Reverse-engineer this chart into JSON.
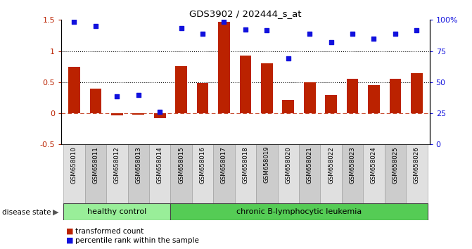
{
  "title": "GDS3902 / 202444_s_at",
  "categories": [
    "GSM658010",
    "GSM658011",
    "GSM658012",
    "GSM658013",
    "GSM658014",
    "GSM658015",
    "GSM658016",
    "GSM658017",
    "GSM658018",
    "GSM658019",
    "GSM658020",
    "GSM658021",
    "GSM658022",
    "GSM658023",
    "GSM658024",
    "GSM658025",
    "GSM658026"
  ],
  "bar_values": [
    0.75,
    0.4,
    -0.03,
    -0.02,
    -0.08,
    0.76,
    0.49,
    1.47,
    0.93,
    0.8,
    0.21,
    0.5,
    0.3,
    0.55,
    0.45,
    0.56,
    0.65
  ],
  "dot_values": [
    1.47,
    1.4,
    0.27,
    0.3,
    0.02,
    1.37,
    1.28,
    1.47,
    1.35,
    1.33,
    0.88,
    1.28,
    1.14,
    1.28,
    1.2,
    1.28,
    1.33
  ],
  "bar_color": "#bb2200",
  "dot_color": "#1111dd",
  "ymin": -0.5,
  "ymax": 1.5,
  "y2min": 0,
  "y2max": 100,
  "yticks_left": [
    -0.5,
    0.0,
    0.5,
    1.0,
    1.5
  ],
  "ytick_labels_left": [
    "-0.5",
    "0",
    "0.5",
    "1",
    "1.5"
  ],
  "yticks_right": [
    0,
    25,
    50,
    75,
    100
  ],
  "ytick_labels_right": [
    "0",
    "25",
    "50",
    "75",
    "100%"
  ],
  "hline_dotted": [
    0.5,
    1.0
  ],
  "healthy_count": 5,
  "healthy_label": "healthy control",
  "leukemia_label": "chronic B-lymphocytic leukemia",
  "disease_state_label": "disease state",
  "legend_bar_label": "transformed count",
  "legend_dot_label": "percentile rank within the sample",
  "healthy_color": "#99ee99",
  "leukemia_color": "#55cc55",
  "label_bg_even": "#e0e0e0",
  "label_bg_odd": "#cccccc"
}
